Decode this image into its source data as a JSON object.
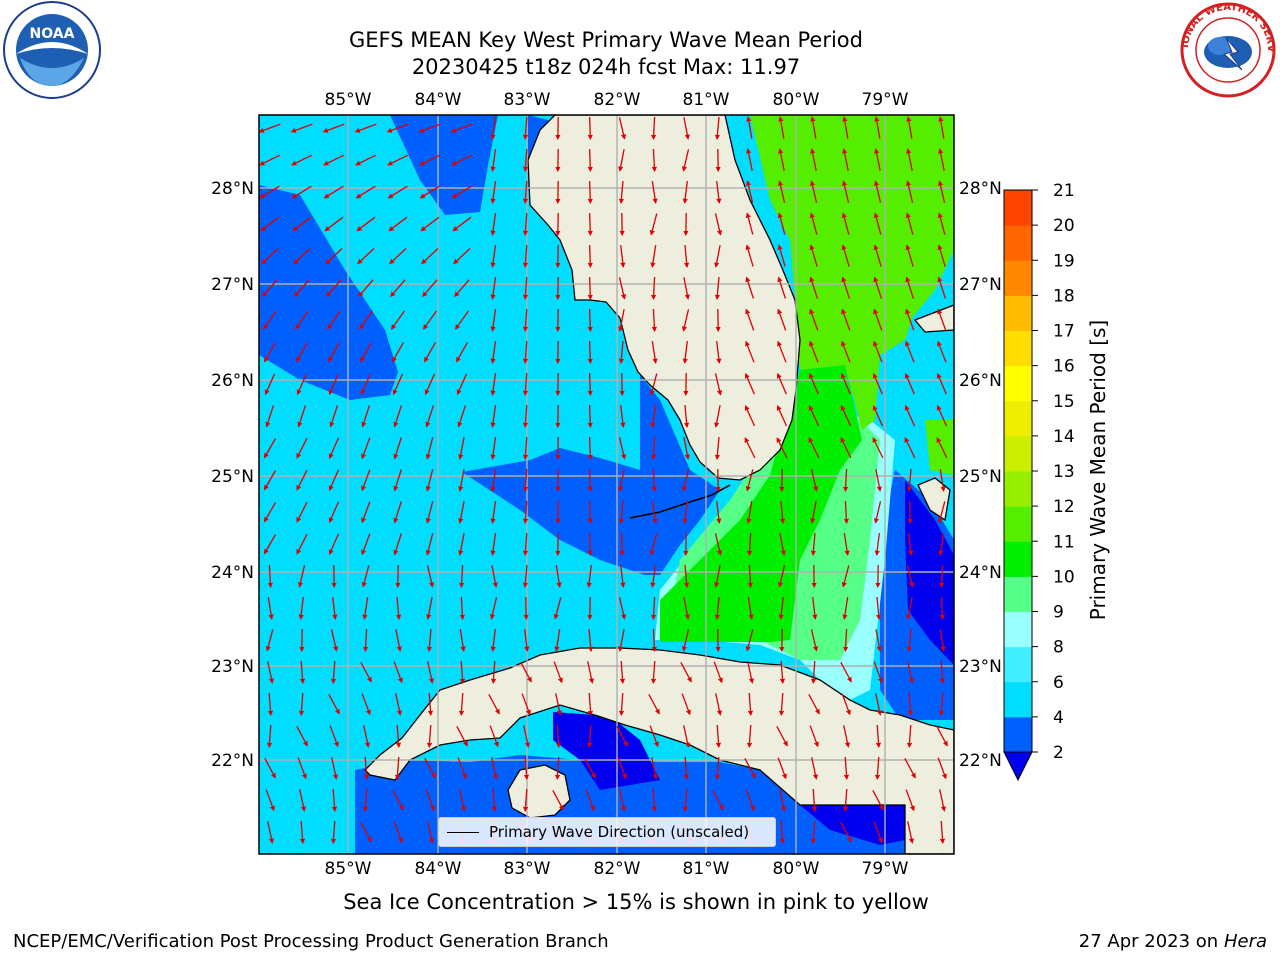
{
  "title": {
    "line1": "GEFS MEAN Key West Primary Wave Mean Period",
    "line2": "20230425 t18z 024h fcst   Max: 11.97"
  },
  "map": {
    "lon_labels": [
      "85°W",
      "84°W",
      "83°W",
      "82°W",
      "81°W",
      "80°W",
      "79°W"
    ],
    "lat_labels": [
      "28°N",
      "27°N",
      "26°N",
      "25°N",
      "24°N",
      "23°N",
      "22°N"
    ],
    "legend_label": "Primary Wave Direction (unscaled)",
    "colors": {
      "land": "#eeeedf",
      "grid": "#b0b0b0",
      "arrow": "#e00000",
      "coast": "#000000"
    }
  },
  "colorbar": {
    "label": "Primary Wave Mean Period [s]",
    "ticks": [
      "2",
      "4",
      "6",
      "8",
      "9",
      "10",
      "11",
      "12",
      "13",
      "14",
      "15",
      "16",
      "17",
      "18",
      "19",
      "20",
      "21"
    ],
    "colors": [
      "#0060ff",
      "#00ddff",
      "#40eeff",
      "#99ffff",
      "#55ff88",
      "#00ee00",
      "#55ee00",
      "#99ee00",
      "#ccee00",
      "#eeee00",
      "#ffff00",
      "#ffdd00",
      "#ffbb00",
      "#ff8800",
      "#ff6600",
      "#ff4400",
      "#ff0000"
    ],
    "under_color": "#0000ee"
  },
  "sea_ice_note": "Sea Ice Concentration > 15% is shown in pink to yellow",
  "footer": {
    "left": "NCEP/EMC/Verification Post Processing Product Generation Branch",
    "right_date": "27 Apr 2023 on ",
    "right_machine": "Hera"
  },
  "logos": {
    "noaa_text": "NOAA",
    "nws_text": "NATIONAL WEATHER SERVICE"
  }
}
